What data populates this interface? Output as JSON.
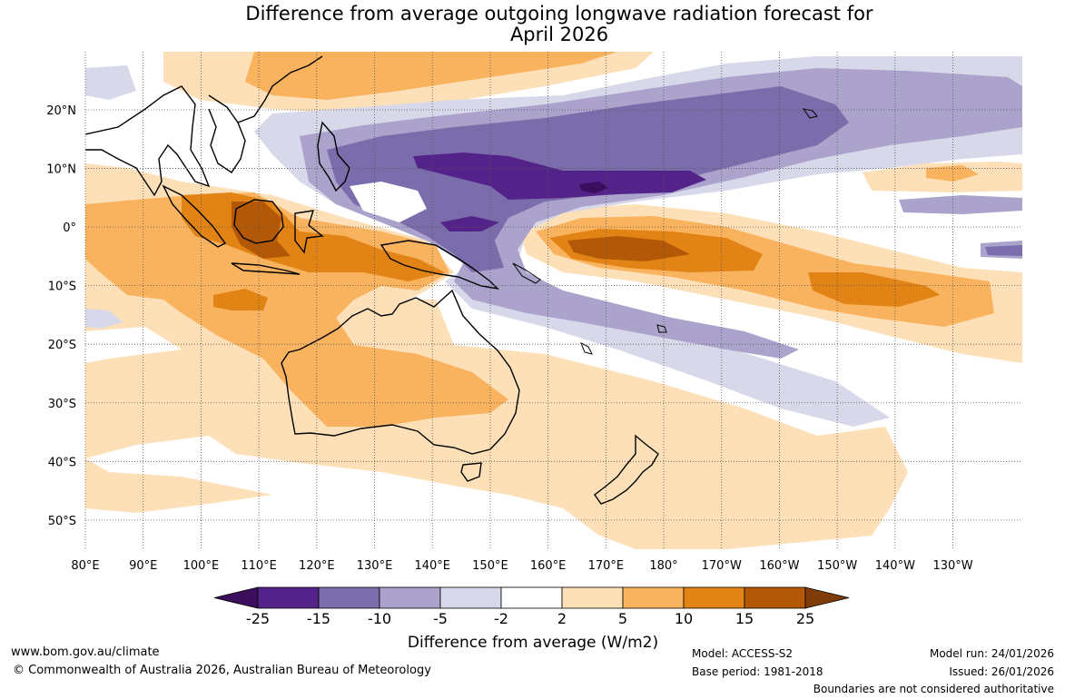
{
  "title": {
    "line1": "Difference from average outgoing longwave radiation forecast for",
    "line2": "April 2026"
  },
  "map": {
    "lon_labels": [
      "80°E",
      "90°E",
      "100°E",
      "110°E",
      "120°E",
      "130°E",
      "140°E",
      "150°E",
      "160°E",
      "170°E",
      "180°",
      "170°W",
      "160°W",
      "150°W",
      "140°W",
      "130°W"
    ],
    "lat_labels": [
      "20°N",
      "10°N",
      "0°",
      "10°S",
      "20°S",
      "30°S",
      "40°S",
      "50°S"
    ],
    "lon_range": [
      80,
      242
    ],
    "lat_range": [
      -55,
      30
    ]
  },
  "colorbar": {
    "ticks": [
      "-25",
      "-15",
      "-10",
      "-5",
      "-2",
      "2",
      "5",
      "10",
      "15",
      "25"
    ],
    "colors": [
      "#3d0d5e",
      "#54238a",
      "#7b6cab",
      "#aba3cc",
      "#d8d8eb",
      "#ffffff",
      "#fde0b7",
      "#f9b35f",
      "#e28415",
      "#b35806",
      "#7f3b08"
    ],
    "label": "Difference from average (W/m2)"
  },
  "footer": {
    "website": "www.bom.gov.au/climate",
    "copyright": "© Commonwealth of Australia 2026, Australian Bureau of Meteorology",
    "model": "Model: ACCESS-S2",
    "base_period": "Base period: 1981-2018",
    "model_run": "Model run: 24/01/2026",
    "issued": "Issued: 26/01/2026",
    "disclaimer": "Boundaries are not considered authoritative"
  }
}
